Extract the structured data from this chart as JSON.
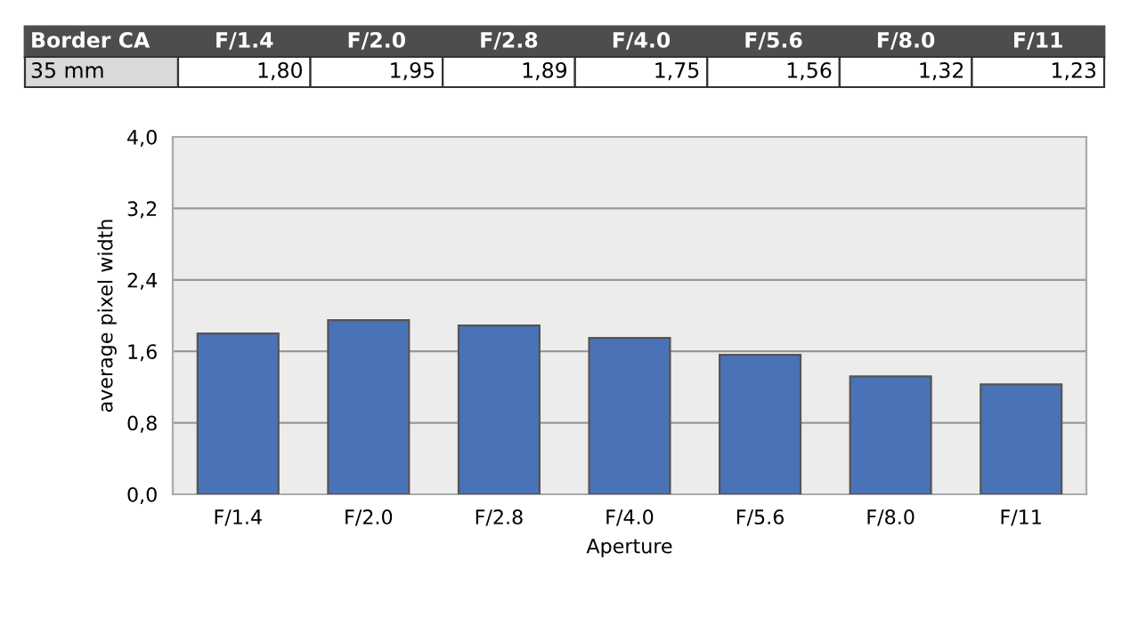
{
  "chart_data": {
    "type": "bar",
    "title": "Border CA",
    "subtitle": "35 mm",
    "xlabel": "Aperture",
    "ylabel": "average pixel width",
    "categories": [
      "F/1.4",
      "F/2.0",
      "F/2.8",
      "F/4.0",
      "F/5.6",
      "F/8.0",
      "F/11"
    ],
    "values": [
      1.8,
      1.95,
      1.89,
      1.75,
      1.56,
      1.32,
      1.23
    ],
    "value_labels": [
      "1,80",
      "1,95",
      "1,89",
      "1,75",
      "1,56",
      "1,32",
      "1,23"
    ],
    "color": "#4a72b6",
    "ylim": [
      0,
      4
    ],
    "yticks": [
      {
        "value": 0,
        "label": "0,0"
      },
      {
        "value": 0.8,
        "label": "0,8"
      },
      {
        "value": 1.6,
        "label": "1,6"
      },
      {
        "value": 2.4,
        "label": "2,4"
      },
      {
        "value": 3.2,
        "label": "3,2"
      },
      {
        "value": 4,
        "label": "4,0"
      }
    ],
    "grid": "y"
  }
}
